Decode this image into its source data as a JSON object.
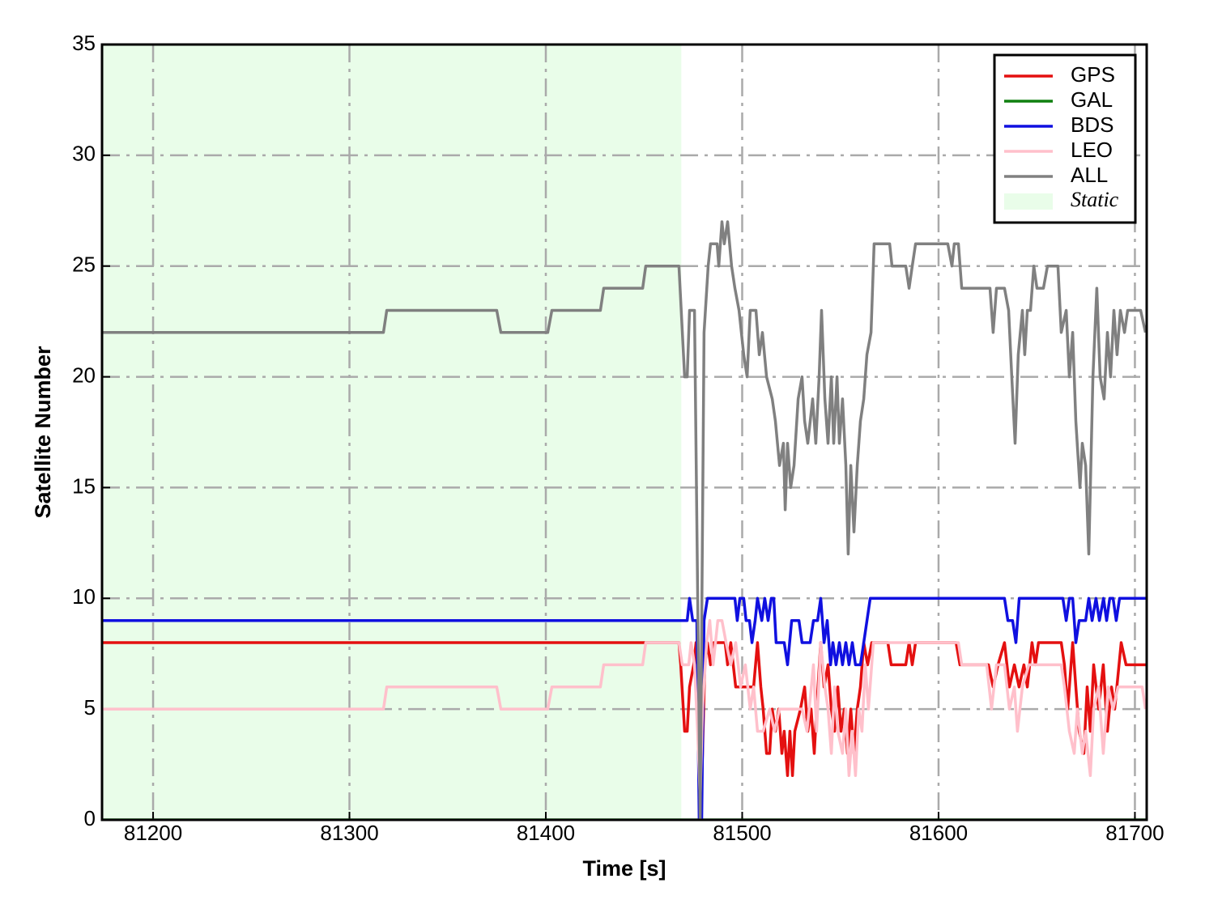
{
  "chart_data": {
    "type": "line",
    "xlabel": "Time [s]",
    "ylabel": "Satellite Number",
    "xlim": [
      81174,
      81706
    ],
    "ylim": [
      0,
      35
    ],
    "xticks": [
      81200,
      81300,
      81400,
      81500,
      81600,
      81700
    ],
    "yticks": [
      0,
      5,
      10,
      15,
      20,
      25,
      30,
      35
    ],
    "grid": true,
    "legend": "upper right",
    "shaded_region": {
      "name": "Static",
      "color": "#e9fde9",
      "x": [
        81174,
        81469
      ]
    },
    "series": [
      {
        "name": "GPS",
        "color": "#e41010",
        "x": [
          81174,
          81467.8,
          81468.7,
          81470.7,
          81472.0,
          81473.2,
          81475.3,
          81476.5,
          81478.6,
          81479.8,
          81481.0,
          81482.3,
          81483.9,
          81485.6,
          81491.3,
          81492.6,
          81494.2,
          81496.7,
          81505.8,
          81507.8,
          81509.5,
          81510.7,
          81512.4,
          81514.0,
          81515.3,
          81516.9,
          81518.6,
          81520.2,
          81521.4,
          81523.1,
          81524.3,
          81525.6,
          81526.8,
          81529.7,
          81531.8,
          81533.4,
          81535.1,
          81536.7,
          81537.9,
          81540.0,
          81541.7,
          81543.7,
          81545.4,
          81547.0,
          81548.7,
          81550.3,
          81552.0,
          81553.6,
          81555.3,
          81556.9,
          81558.6,
          81560.2,
          81561.9,
          81563.9,
          81566.0,
          81574.2,
          81575.9,
          81583.3,
          81585.0,
          81586.6,
          81588.3,
          81608.9,
          81610.9,
          81625.4,
          81627.8,
          81630.3,
          81633.6,
          81636.1,
          81638.6,
          81641.0,
          81643.5,
          81645.2,
          81647.6,
          81649.3,
          81650.9,
          81662.5,
          81664.1,
          81665.8,
          81668.3,
          81669.9,
          81671.6,
          81674.0,
          81675.7,
          81677.3,
          81679.0,
          81681.5,
          81683.9,
          81686.0,
          81688.1,
          81689.7,
          81693.0,
          81695.5,
          81705.4
        ],
        "values": [
          8,
          8,
          7,
          4,
          4,
          6,
          7,
          8,
          0,
          3,
          7,
          8,
          7,
          8,
          8,
          7,
          8,
          6,
          6,
          8,
          6,
          5,
          3,
          3,
          5,
          4,
          5,
          3,
          4,
          2,
          4,
          2,
          4,
          5,
          6,
          4,
          5,
          3,
          5,
          8,
          6,
          7,
          5,
          4,
          6,
          4,
          5,
          3,
          5,
          3,
          5,
          6,
          8,
          7,
          8,
          8,
          7,
          7,
          8,
          7,
          8,
          8,
          7,
          7,
          6,
          7,
          8,
          6,
          7,
          6,
          7,
          6,
          8,
          7,
          8,
          8,
          7,
          5,
          8,
          6,
          4,
          3,
          6,
          4,
          7,
          5,
          7,
          4,
          6,
          5,
          8,
          7,
          7
        ]
      },
      {
        "name": "GAL",
        "color": "#108010",
        "x": [
          81174,
          81706
        ],
        "values": [
          0,
          0
        ]
      },
      {
        "name": "BDS",
        "color": "#1010e0",
        "x": [
          81174,
          81472.0,
          81473.2,
          81474.8,
          81476.9,
          81478.1,
          81479.4,
          81480.6,
          81482.3,
          81496.3,
          81497.5,
          81498.8,
          81500.8,
          81502.0,
          81503.7,
          81505.0,
          81506.6,
          81507.8,
          81510.0,
          81511.5,
          81513.2,
          81514.8,
          81516.1,
          81517.3,
          81521.4,
          81523.1,
          81525.2,
          81528.9,
          81530.5,
          81534.6,
          81536.3,
          81538.4,
          81540.0,
          81541.7,
          81543.3,
          81545.0,
          81546.2,
          81547.8,
          81549.5,
          81551.1,
          81552.8,
          81554.4,
          81556.1,
          81557.7,
          81560.2,
          81561.9,
          81565.2,
          81633.6,
          81635.3,
          81637.7,
          81639.4,
          81641.1,
          81663.3,
          81665.0,
          81666.6,
          81668.3,
          81669.9,
          81671.6,
          81674.9,
          81676.5,
          81678.2,
          81680.2,
          81681.9,
          81684.0,
          81685.6,
          81687.2,
          81688.9,
          81690.5,
          81692.2,
          81705.4
        ],
        "values": [
          9,
          9,
          10,
          9,
          9,
          0,
          0,
          9,
          10,
          10,
          9,
          10,
          10,
          9,
          9,
          8,
          9,
          10,
          9,
          10,
          9,
          10,
          10,
          8,
          8,
          7,
          9,
          9,
          8,
          8,
          9,
          9,
          10,
          8,
          9,
          7,
          8,
          7,
          8,
          7,
          8,
          7,
          8,
          7,
          7,
          8,
          10,
          10,
          9,
          9,
          8,
          10,
          10,
          9,
          10,
          10,
          8,
          9,
          9,
          10,
          9,
          10,
          9,
          10,
          9,
          10,
          10,
          9,
          10,
          10
        ]
      },
      {
        "name": "LEO",
        "color": "#ffc0cb",
        "x": [
          81174,
          81317.3,
          81319.0,
          81375.0,
          81377.1,
          81401.0,
          81403.1,
          81427.8,
          81429.5,
          81449.3,
          81450.9,
          81467.8,
          81469.5,
          81472.8,
          81474.0,
          81475.7,
          81477.3,
          81478.6,
          81479.8,
          81481.9,
          81483.5,
          81485.2,
          81487.6,
          81489.7,
          81491.8,
          81494.2,
          81496.7,
          81499.2,
          81501.6,
          81504.1,
          81505.8,
          81507.8,
          81510.7,
          81514.0,
          81516.5,
          81519.0,
          81530.5,
          81533.0,
          81536.3,
          81537.9,
          81540.0,
          81542.1,
          81543.7,
          81545.4,
          81547.0,
          81548.7,
          81551.1,
          81552.8,
          81554.4,
          81556.1,
          81557.7,
          81559.4,
          81561.0,
          81562.7,
          81564.3,
          81566.8,
          81610.1,
          81611.8,
          81624.5,
          81627.0,
          81629.5,
          81633.6,
          81636.1,
          81638.6,
          81640.2,
          81642.7,
          81646.0,
          81662.5,
          81664.1,
          81666.6,
          81669.1,
          81670.7,
          81673.2,
          81674.9,
          81677.3,
          81679.0,
          81681.5,
          81683.9,
          81686.4,
          81688.9,
          81691.4,
          81703.7,
          81705.4
        ],
        "values": [
          5,
          5,
          6,
          6,
          5,
          5,
          6,
          6,
          7,
          7,
          8,
          8,
          7,
          7,
          8,
          7,
          4,
          1,
          5,
          8,
          9,
          7,
          9,
          9,
          8,
          7,
          8,
          6,
          7,
          5,
          6,
          4,
          4,
          5,
          4,
          5,
          5,
          4,
          7,
          4,
          8,
          6,
          5,
          3,
          6,
          4,
          3,
          5,
          2,
          4,
          2,
          5,
          4,
          7,
          5,
          8,
          8,
          7,
          7,
          5,
          7,
          7,
          5,
          6,
          4,
          6,
          7,
          7,
          6,
          4,
          3,
          5,
          3,
          4,
          2,
          5,
          6,
          3,
          6,
          5,
          6,
          6,
          5
        ]
      },
      {
        "name": "ALL",
        "color": "#808080",
        "x": [
          81174,
          81317.3,
          81319.0,
          81375.0,
          81377.1,
          81401.0,
          81403.1,
          81427.8,
          81429.5,
          81449.3,
          81450.9,
          81467.8,
          81470.7,
          81472.0,
          81473.2,
          81475.7,
          81478.6,
          81480.6,
          81482.7,
          81483.9,
          81487.2,
          81488.1,
          81489.7,
          81490.9,
          81492.6,
          81494.6,
          81496.3,
          81498.4,
          81500.8,
          81502.5,
          81504.1,
          81507.0,
          81508.7,
          81510.3,
          81512.4,
          81515.3,
          81516.9,
          81519.0,
          81521.0,
          81521.9,
          81523.1,
          81524.7,
          81526.4,
          81528.5,
          81530.5,
          81531.8,
          81533.4,
          81535.9,
          81537.5,
          81539.2,
          81540.4,
          81542.1,
          81543.7,
          81545.4,
          81546.6,
          81548.3,
          81549.5,
          81551.1,
          81552.8,
          81554.0,
          81555.3,
          81556.9,
          81558.6,
          81560.2,
          81561.9,
          81563.5,
          81565.6,
          81567.2,
          81575.1,
          81576.3,
          81583.3,
          81585.0,
          81586.6,
          81588.3,
          81604.7,
          81606.8,
          81608.0,
          81610.1,
          81611.8,
          81626.2,
          81627.8,
          81629.5,
          81633.6,
          81635.7,
          81637.3,
          81639.0,
          81640.6,
          81642.7,
          81643.9,
          81645.2,
          81646.8,
          81648.5,
          81650.1,
          81653.4,
          81655.5,
          81660.8,
          81662.5,
          81665.0,
          81666.6,
          81668.3,
          81669.9,
          81672.0,
          81673.2,
          81674.9,
          81676.5,
          81678.6,
          81680.6,
          81682.3,
          81684.3,
          81686.0,
          81687.6,
          81689.3,
          81690.9,
          81692.6,
          81694.7,
          81696.3,
          81702.9,
          81705.4
        ],
        "values": [
          22,
          22,
          23,
          23,
          22,
          22,
          23,
          23,
          24,
          24,
          25,
          25,
          20,
          20,
          23,
          23,
          0,
          22,
          25,
          26,
          26,
          25,
          27,
          26,
          27,
          25,
          24,
          23,
          21,
          20,
          23,
          23,
          21,
          22,
          20,
          19,
          18,
          16,
          17,
          14,
          17,
          15,
          16,
          19,
          20,
          18,
          17,
          19,
          17,
          20,
          23,
          19,
          17,
          20,
          17,
          20,
          17,
          19,
          16,
          12,
          16,
          13,
          16,
          18,
          19,
          21,
          22,
          26,
          26,
          25,
          25,
          24,
          25,
          26,
          26,
          25,
          26,
          26,
          24,
          24,
          22,
          24,
          24,
          23,
          20,
          17,
          21,
          23,
          21,
          23,
          23,
          25,
          24,
          24,
          25,
          25,
          22,
          23,
          20,
          22,
          18,
          15,
          17,
          16,
          12,
          20,
          24,
          20,
          19,
          22,
          20,
          23,
          21,
          23,
          22,
          23,
          23,
          22
        ]
      }
    ]
  }
}
